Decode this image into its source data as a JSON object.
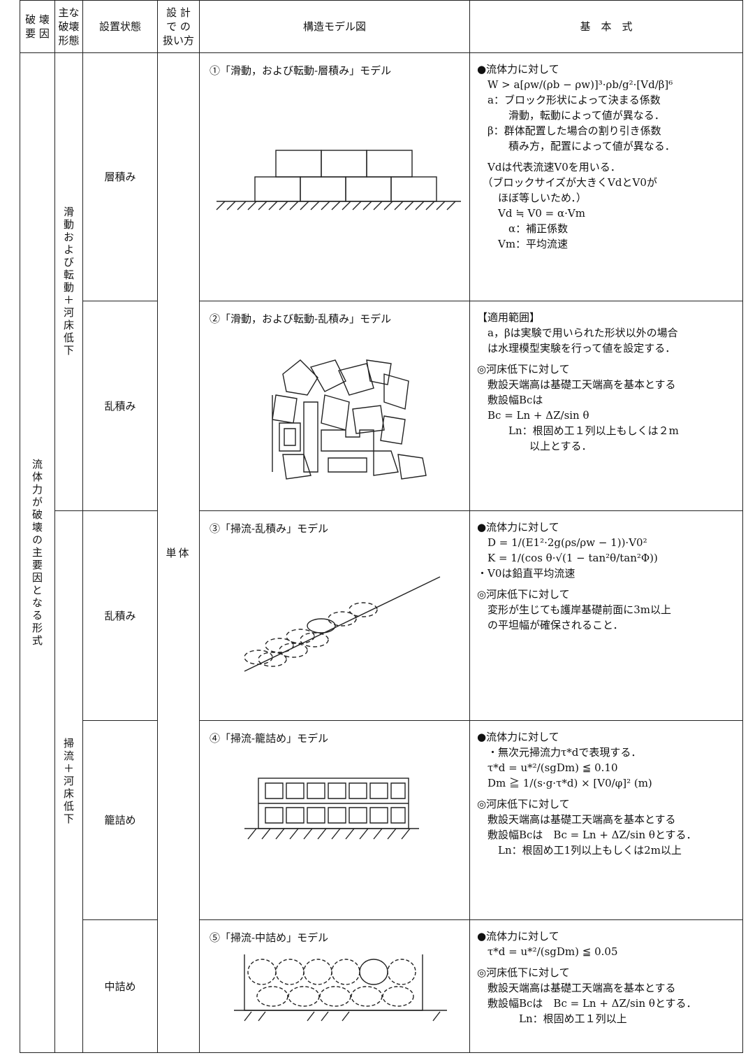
{
  "header": {
    "cause": [
      "破 壊",
      "要 因"
    ],
    "mode": [
      "主な",
      "破壊",
      "形態"
    ],
    "state": "設置状態",
    "design": [
      "設 計",
      "で の",
      "扱い方"
    ],
    "model": "構造モデル図",
    "formula": "基　本　式"
  },
  "table": {
    "cause": "流体力が破壊の主要因となる形式",
    "design": "単体",
    "groups": [
      {
        "mode": "滑動および転動＋河床低下",
        "rows": [
          {
            "state": "層積み",
            "model_title": "①「滑動，および転動-層積み」モデル",
            "paragraphs": [
              [
                "●流体力に対して",
                "　W > a[ρw/(ρb − ρw)]³·ρb/g²·[Vd/β]⁶",
                "　a：ブロック形状によって決まる係数",
                "　　　滑動，転動によって値が異なる．",
                "　β：群体配置した場合の割り引き係数",
                "　　　積み方，配置によって値が異なる．"
              ],
              [
                "　Vdは代表流速V0を用いる．",
                "　（ブロックサイズが大きくVdとV0が",
                "　　ほぼ等しいため．）",
                "　　Vd ≒ V0 = α·Vm",
                "　　　α：補正係数",
                "　　Vm：平均流速"
              ]
            ]
          },
          {
            "state": "乱積み",
            "model_title": "②「滑動，および転動-乱積み」モデル",
            "paragraphs": [
              [
                "【適用範囲】",
                "　a，βは実験で用いられた形状以外の場合",
                "　は水理模型実験を行って値を設定する．"
              ],
              [
                "◎河床低下に対して",
                "　敷設天端高は基礎工天端高を基本とする",
                "　敷設幅Bcは",
                "　Bc = Ln + ΔZ/sin θ",
                "　　　Ln：根固め工１列以上もしくは２m",
                "　　　　　以上とする．"
              ]
            ]
          }
        ]
      },
      {
        "mode": "掃流＋河床低下",
        "rows": [
          {
            "state": "乱積み",
            "model_title": "③「掃流-乱積み」モデル",
            "paragraphs": [
              [
                "●流体力に対して",
                "　D = 1/(E1²·2g(ρs/ρw − 1))·V0²",
                "　K = 1/(cos θ·√(1 − tan²θ/tan²Φ))",
                "・V0は鉛直平均流速"
              ],
              [
                "◎河床低下に対して",
                "　変形が生じても護岸基礎前面に3m以上",
                "　の平坦幅が確保されること．"
              ]
            ]
          },
          {
            "state": "籠詰め",
            "model_title": "④「掃流-籠詰め」モデル",
            "paragraphs": [
              [
                "●流体力に対して",
                "　・無次元掃流力τ*dで表現する．",
                "　τ*d = u*²/(sgDm) ≦ 0.10",
                "　Dm ≧ 1/(s·g·τ*d) × [V0/φ]² (m)"
              ],
              [
                "◎河床低下に対して",
                "　敷設天端高は基礎工天端高を基本とする",
                "　敷設幅Bcは　Bc = Ln + ΔZ/sin θとする．",
                "　　Ln：根固め工1列以上もしくは2m以上"
              ]
            ]
          },
          {
            "state": "中詰め",
            "model_title": "⑤「掃流-中詰め」モデル",
            "paragraphs": [
              [
                "●流体力に対して",
                "　τ*d = u*²/(sgDm) ≦ 0.05"
              ],
              [
                "◎河床低下に対して",
                "　敷設天端高は基礎工天端高を基本とする",
                "　敷設幅Bcは　Bc = Ln + ΔZ/sin θとする．",
                "　　　　Ln：根固め工１列以上"
              ]
            ]
          }
        ]
      }
    ]
  }
}
